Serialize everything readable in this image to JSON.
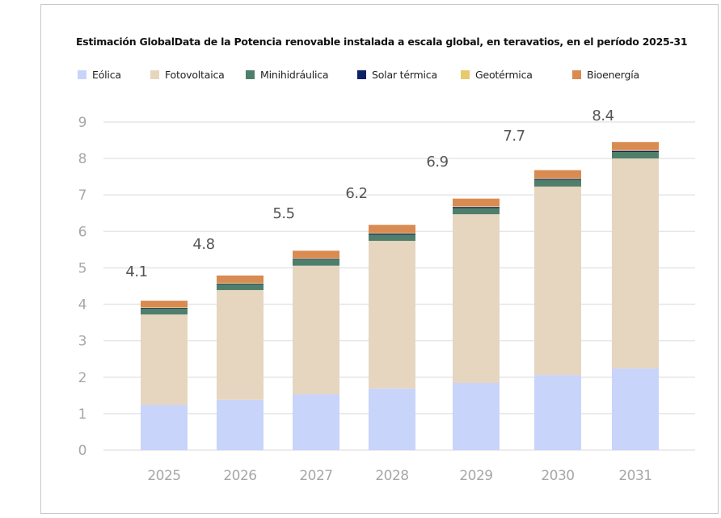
{
  "chart_data": {
    "type": "bar",
    "stacked": true,
    "title": "Estimación GlobalData de la Potencia renovable instalada a escala global, en teravatios, en el período 2025-31",
    "xlabel": "",
    "ylabel": "",
    "ylim": [
      0,
      9
    ],
    "yticks": [
      "0",
      "1",
      "2",
      "3",
      "4",
      "5",
      "6",
      "7",
      "8",
      "9"
    ],
    "grid": true,
    "legend_position": "top",
    "categories": [
      "2025",
      "2026",
      "2027",
      "2028",
      "2029",
      "2030",
      "2031"
    ],
    "totals": [
      "4.1",
      "4.8",
      "5.5",
      "6.2",
      "6.9",
      "7.7",
      "8.4"
    ],
    "series": [
      {
        "name": "Eólica",
        "color": "#c9d4fb",
        "values": [
          1.24,
          1.38,
          1.53,
          1.69,
          1.84,
          2.06,
          2.24
        ]
      },
      {
        "name": "Fotovoltaica",
        "color": "#e6d6c0",
        "values": [
          2.48,
          3.01,
          3.53,
          4.05,
          4.63,
          5.17,
          5.76
        ]
      },
      {
        "name": "Minihidráulica",
        "color": "#4f7f6b",
        "values": [
          0.16,
          0.16,
          0.17,
          0.17,
          0.17,
          0.18,
          0.18
        ]
      },
      {
        "name": "Solar térmica",
        "color": "#0d2266",
        "values": [
          0.02,
          0.02,
          0.02,
          0.03,
          0.03,
          0.03,
          0.03
        ]
      },
      {
        "name": "Geotérmica",
        "color": "#e8c96e",
        "values": [
          0.02,
          0.02,
          0.02,
          0.02,
          0.02,
          0.02,
          0.02
        ]
      },
      {
        "name": "Bioenergía",
        "color": "#d98b52",
        "values": [
          0.18,
          0.2,
          0.2,
          0.22,
          0.21,
          0.22,
          0.22
        ]
      }
    ]
  }
}
